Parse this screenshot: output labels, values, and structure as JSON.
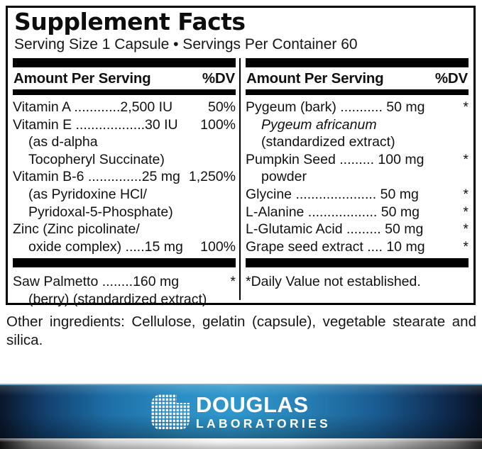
{
  "label": {
    "title": "Supplement Facts",
    "serving_line": "Serving Size 1 Capsule • Servings Per Container 60",
    "column_header": {
      "left_label": "Amount Per Serving",
      "right_label": "%DV"
    },
    "left_column": {
      "rows": [
        {
          "text": "Vitamin A ............2,500 IU",
          "dv": "50%"
        },
        {
          "text": "Vitamin E ..................30 IU",
          "dv": "100%"
        },
        {
          "text": "(as d-alpha",
          "indent": true
        },
        {
          "text": "Tocopheryl Succinate)",
          "indent": true
        },
        {
          "text": "Vitamin B-6 ..............25 mg",
          "dv": "1,250%"
        },
        {
          "text": "(as Pyridoxine HCl/",
          "indent": true
        },
        {
          "text": "Pyridoxal-5-Phosphate)",
          "indent": true
        },
        {
          "text": "Zinc (Zinc picolinate/"
        },
        {
          "text": "oxide complex) .....15 mg",
          "dv": "100%",
          "indent": true
        },
        {
          "type": "bar"
        },
        {
          "text": "Saw Palmetto ........160 mg",
          "dv": "*"
        },
        {
          "text": "(berry) (standardized extract)",
          "indent": true
        }
      ]
    },
    "right_column": {
      "rows": [
        {
          "text": "Pygeum (bark) ........... 50 mg",
          "dv": "*"
        },
        {
          "text": "Pygeum africanum",
          "indent": true,
          "italic": true
        },
        {
          "text": "(standardized extract)",
          "indent": true
        },
        {
          "text": "Pumpkin Seed ......... 100 mg",
          "dv": "*"
        },
        {
          "text": "powder",
          "indent": true
        },
        {
          "text": "Glycine ..................... 50 mg",
          "dv": "*"
        },
        {
          "text": "L-Alanine .................. 50 mg",
          "dv": "*"
        },
        {
          "text": "L-Glutamic Acid ......... 50 mg",
          "dv": "*"
        },
        {
          "text": "Grape seed extract .... 10 mg",
          "dv": "*"
        },
        {
          "type": "bar"
        },
        {
          "text": "*Daily Value not established."
        }
      ]
    }
  },
  "other_ingredients": {
    "line1": "Other ingredients: Cellulose, gelatin (capsule), vegetable stearate and",
    "line2": "silica."
  },
  "footer": {
    "brand_name": "DOUGLAS",
    "brand_subtitle": "LABORATORIES",
    "logo_mark_icon": "dotted-grid-mark",
    "colors": {
      "band_blue_bright": "#2f97cd",
      "band_navy_edge": "#0a1629",
      "band_top_line": "#6fb0d3",
      "silver_light": "#f1f1f1",
      "silver_dark_edge": "#141414",
      "text_on_band": "#ffffff",
      "label_ink": "#000000"
    }
  }
}
